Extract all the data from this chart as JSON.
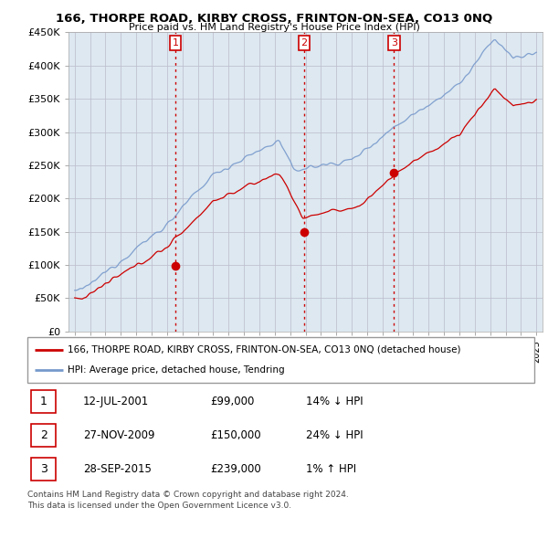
{
  "title": "166, THORPE ROAD, KIRBY CROSS, FRINTON-ON-SEA, CO13 0NQ",
  "subtitle": "Price paid vs. HM Land Registry's House Price Index (HPI)",
  "ylim": [
    0,
    450000
  ],
  "yticks": [
    0,
    50000,
    100000,
    150000,
    200000,
    250000,
    300000,
    350000,
    400000,
    450000
  ],
  "ytick_labels": [
    "£0",
    "£50K",
    "£100K",
    "£150K",
    "£200K",
    "£250K",
    "£300K",
    "£350K",
    "£400K",
    "£450K"
  ],
  "legend_line1": "166, THORPE ROAD, KIRBY CROSS, FRINTON-ON-SEA, CO13 0NQ (detached house)",
  "legend_line2": "HPI: Average price, detached house, Tendring",
  "transactions": [
    {
      "num": 1,
      "date": "12-JUL-2001",
      "price": "£99,000",
      "hpi": "14% ↓ HPI",
      "year": 2001.54
    },
    {
      "num": 2,
      "date": "27-NOV-2009",
      "price": "£150,000",
      "hpi": "24% ↓ HPI",
      "year": 2009.91
    },
    {
      "num": 3,
      "date": "28-SEP-2015",
      "price": "£239,000",
      "hpi": "1% ↑ HPI",
      "year": 2015.74
    }
  ],
  "footer1": "Contains HM Land Registry data © Crown copyright and database right 2024.",
  "footer2": "This data is licensed under the Open Government Licence v3.0.",
  "vline_color": "#cc0000",
  "grid_color": "#bbbbcc",
  "hpi_color": "#7799cc",
  "price_color": "#cc0000",
  "bg_color": "#dde8f0",
  "transaction_marker_values": [
    99000,
    150000,
    239000
  ],
  "transaction_years": [
    2001.54,
    2009.91,
    2015.74
  ],
  "xlim_left": 1994.6,
  "xlim_right": 2025.4
}
